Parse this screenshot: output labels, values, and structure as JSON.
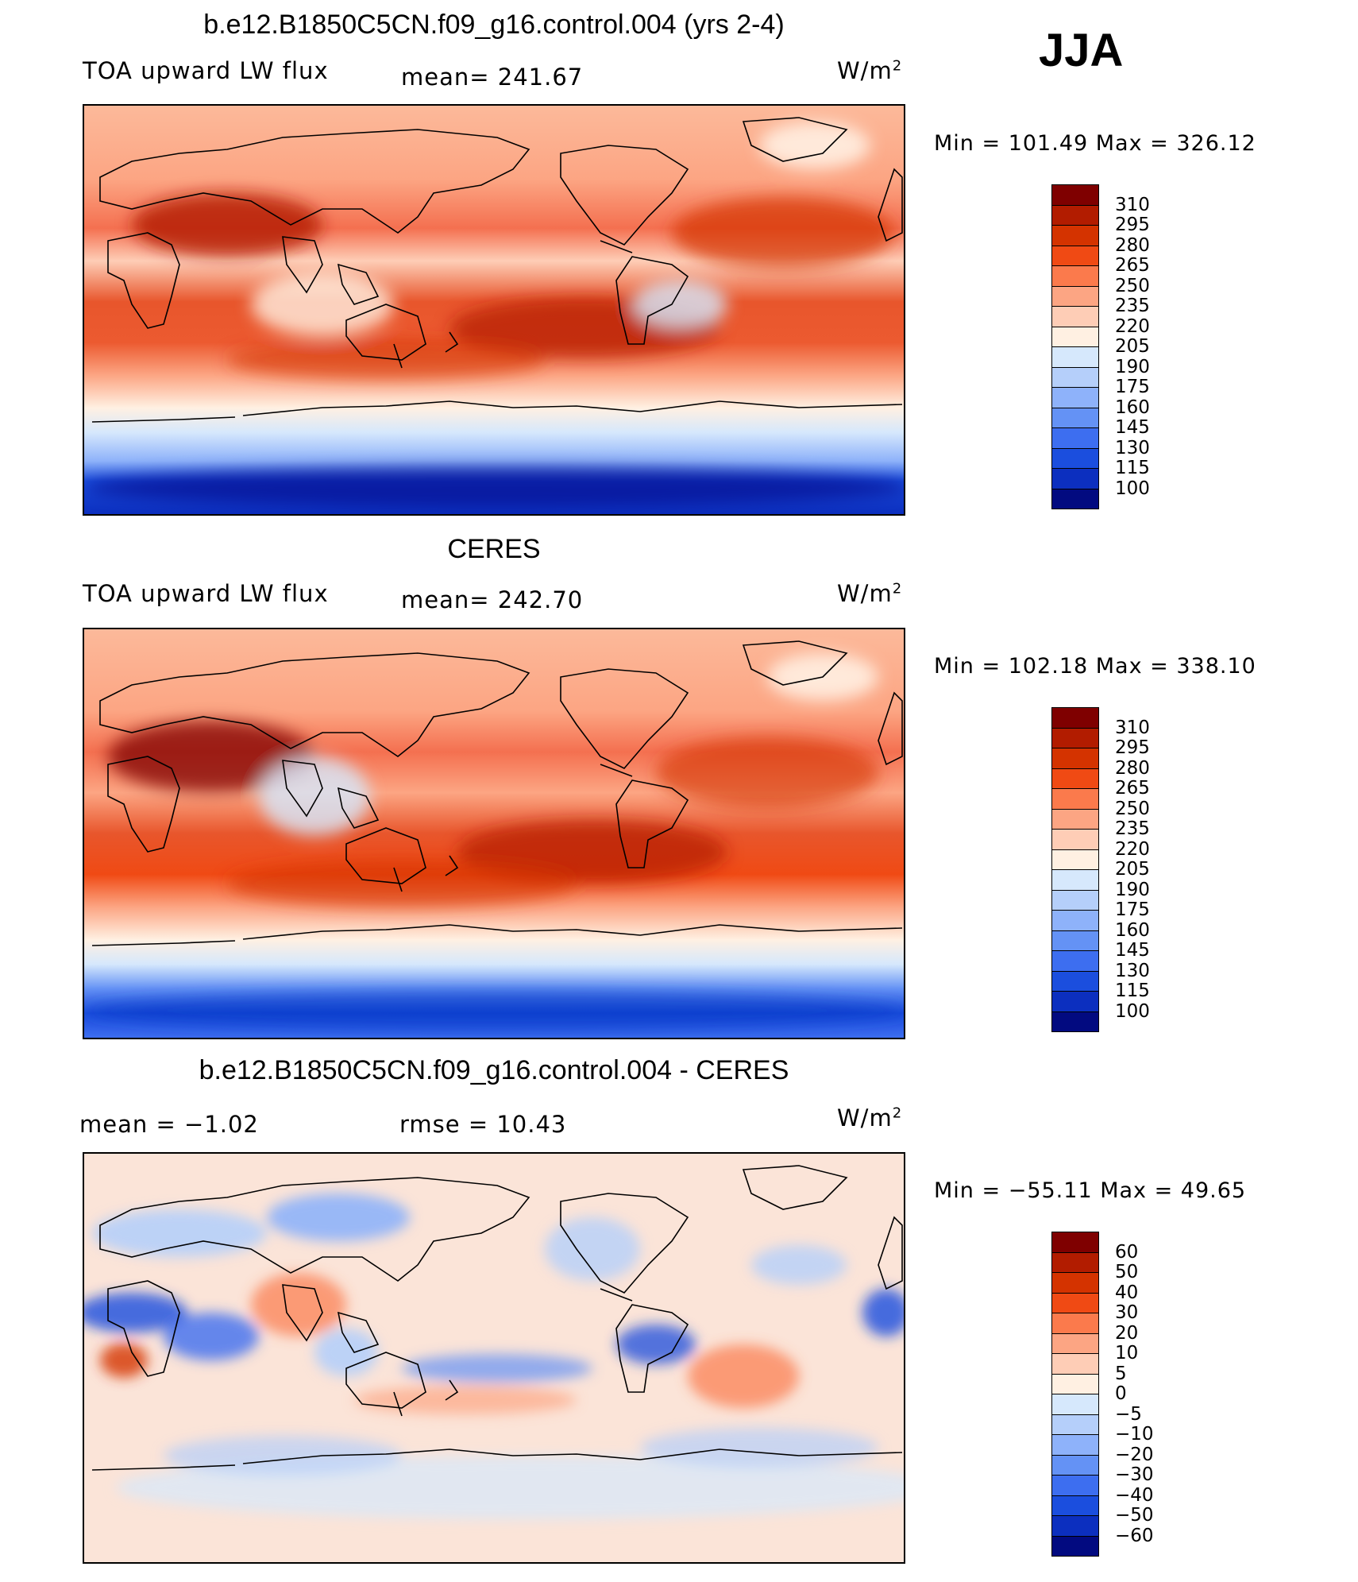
{
  "season": "JJA",
  "chart_data": [
    {
      "type": "heatmap",
      "title": "b.e12.B1850C5CN.f09_g16.control.004 (yrs 2-4)",
      "left_label": "TOA upward LW flux",
      "center_label": "mean=  241.67",
      "unit_label": "W/m",
      "unit_sup": "2",
      "minmax": "Min  =  101.49  Max  =  326.12",
      "legend": {
        "levels": [
          "310",
          "295",
          "280",
          "265",
          "250",
          "235",
          "220",
          "205",
          "190",
          "175",
          "160",
          "145",
          "130",
          "115",
          "100"
        ],
        "colors": [
          "#7f0000",
          "#b21c00",
          "#d43300",
          "#f04a14",
          "#fb7a4c",
          "#fca583",
          "#fecdb6",
          "#fff0e2",
          "#d6e8fc",
          "#b5cffa",
          "#8eb2fa",
          "#6492f5",
          "#3d6ef0",
          "#1b4ede",
          "#0c2fbf",
          "#020a80"
        ]
      }
    },
    {
      "type": "heatmap",
      "title": "CERES",
      "left_label": "TOA upward LW flux",
      "center_label": "mean=  242.70",
      "unit_label": "W/m",
      "unit_sup": "2",
      "minmax": "Min  =  102.18  Max  =  338.10",
      "legend": {
        "levels": [
          "310",
          "295",
          "280",
          "265",
          "250",
          "235",
          "220",
          "205",
          "190",
          "175",
          "160",
          "145",
          "130",
          "115",
          "100"
        ],
        "colors": [
          "#7f0000",
          "#b21c00",
          "#d43300",
          "#f04a14",
          "#fb7a4c",
          "#fca583",
          "#fecdb6",
          "#fff0e2",
          "#d6e8fc",
          "#b5cffa",
          "#8eb2fa",
          "#6492f5",
          "#3d6ef0",
          "#1b4ede",
          "#0c2fbf",
          "#020a80"
        ]
      }
    },
    {
      "type": "heatmap",
      "title": "b.e12.B1850C5CN.f09_g16.control.004 - CERES",
      "left_label": "mean  =     −1.02",
      "center_label": "rmse  =     10.43",
      "unit_label": "W/m",
      "unit_sup": "2",
      "minmax": "Min  =  −55.11  Max  =     49.65",
      "legend": {
        "levels": [
          "60",
          "50",
          "40",
          "30",
          "20",
          "10",
          "5",
          "0",
          "−5",
          "−10",
          "−20",
          "−30",
          "−40",
          "−50",
          "−60"
        ],
        "colors": [
          "#7f0000",
          "#b21c00",
          "#d43300",
          "#f04a14",
          "#fb7a4c",
          "#fca583",
          "#fecdb6",
          "#fff0e2",
          "#d6e8fc",
          "#b5cffa",
          "#8eb2fa",
          "#6492f5",
          "#3d6ef0",
          "#1b4ede",
          "#0c2fbf",
          "#020a80"
        ]
      }
    }
  ]
}
